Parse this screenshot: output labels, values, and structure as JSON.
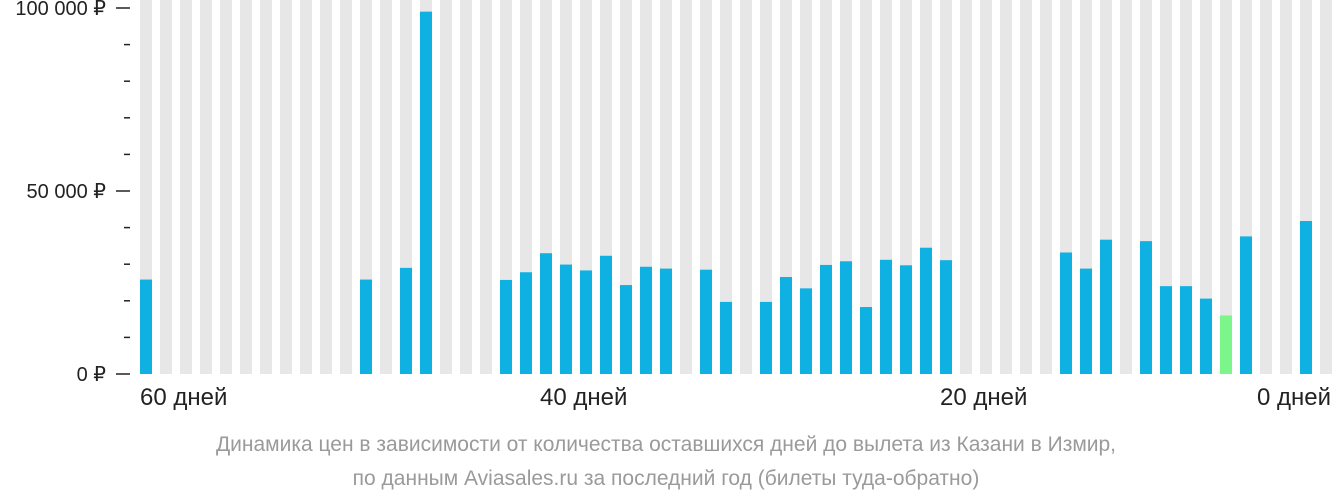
{
  "chart_data": {
    "type": "bar",
    "xlabel": "",
    "ylabel": "",
    "ylim": [
      0,
      100000
    ],
    "x_range": [
      60,
      0
    ],
    "y_ticks": [
      {
        "value": 0,
        "label": "0 ₽"
      },
      {
        "value": 50000,
        "label": "50 000 ₽"
      },
      {
        "value": 100000,
        "label": "100 000 ₽"
      }
    ],
    "x_ticks": [
      {
        "value": 60,
        "label": "60 дней"
      },
      {
        "value": 40,
        "label": "40 дней"
      },
      {
        "value": 20,
        "label": "20 дней"
      },
      {
        "value": 0,
        "label": "0 дней"
      }
    ],
    "bars": [
      {
        "days": 60,
        "value": 25800
      },
      {
        "days": 49,
        "value": 25800
      },
      {
        "days": 47,
        "value": 29000
      },
      {
        "days": 46,
        "value": 99000
      },
      {
        "days": 42,
        "value": 25700
      },
      {
        "days": 41,
        "value": 27800
      },
      {
        "days": 40,
        "value": 33000
      },
      {
        "days": 39,
        "value": 29900
      },
      {
        "days": 38,
        "value": 28300
      },
      {
        "days": 37,
        "value": 32300
      },
      {
        "days": 36,
        "value": 24300
      },
      {
        "days": 35,
        "value": 29300
      },
      {
        "days": 34,
        "value": 28800
      },
      {
        "days": 32,
        "value": 28500
      },
      {
        "days": 31,
        "value": 19700
      },
      {
        "days": 29,
        "value": 19700
      },
      {
        "days": 28,
        "value": 26500
      },
      {
        "days": 27,
        "value": 23400
      },
      {
        "days": 26,
        "value": 29800
      },
      {
        "days": 25,
        "value": 30800
      },
      {
        "days": 24,
        "value": 18300
      },
      {
        "days": 23,
        "value": 31200
      },
      {
        "days": 22,
        "value": 29700
      },
      {
        "days": 21,
        "value": 34500
      },
      {
        "days": 20,
        "value": 31100
      },
      {
        "days": 14,
        "value": 33200
      },
      {
        "days": 13,
        "value": 28800
      },
      {
        "days": 12,
        "value": 36700
      },
      {
        "days": 10,
        "value": 36300
      },
      {
        "days": 9,
        "value": 24000
      },
      {
        "days": 8,
        "value": 24000
      },
      {
        "days": 7,
        "value": 20600
      },
      {
        "days": 6,
        "value": 16000,
        "highlight": true
      },
      {
        "days": 5,
        "value": 37600
      },
      {
        "days": 2,
        "value": 41800
      }
    ],
    "colors": {
      "bar": "#0fb1e2",
      "highlight": "#7cf58a",
      "background_column": "#e7e7e7",
      "axis": "#222222"
    },
    "grid": false,
    "legend": "none"
  },
  "caption": {
    "line1": "Динамика цен в зависимости от количества оставшихся дней до вылета из Казани в Измир,",
    "line2": "по данным Aviasales.ru за последний год (билеты туда-обратно)"
  }
}
